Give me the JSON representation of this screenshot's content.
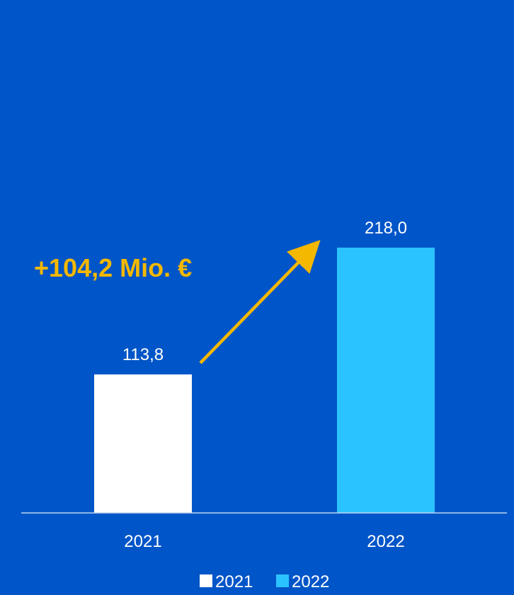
{
  "colors": {
    "background": "#0055C8",
    "series_2021": "#FFFFFF",
    "series_2022": "#2BC3FF",
    "annotation": "#F5B800",
    "label_text": "#FFFFFF"
  },
  "chart_data": {
    "type": "bar",
    "categories": [
      "2021",
      "2022"
    ],
    "series": [
      {
        "name": "2021",
        "values": [
          113.8,
          null
        ]
      },
      {
        "name": "2022",
        "values": [
          null,
          218.0
        ]
      }
    ],
    "data_labels": [
      "113,8",
      "218,0"
    ],
    "ylim": [
      0,
      300
    ],
    "grid": false,
    "legend": {
      "position": "bottom-center",
      "entries": [
        "2021",
        "2022"
      ]
    },
    "annotation": {
      "text": "+104,2 Mio. €",
      "arrow": "from 2021 bar to 2022 bar"
    }
  }
}
